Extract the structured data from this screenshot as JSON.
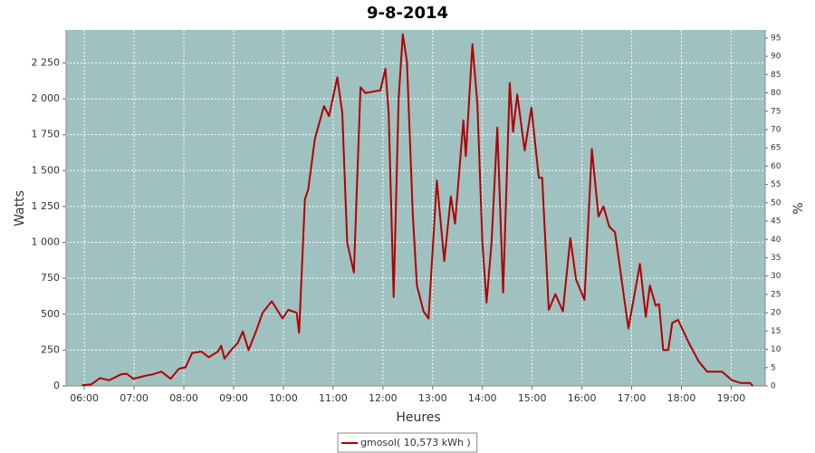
{
  "chart_data": {
    "type": "line",
    "title": "9-8-2014",
    "x_label": "Heures",
    "y_label": "Watts",
    "y2_label": "%",
    "x": [
      "05:57",
      "06:08",
      "06:19",
      "06:30",
      "06:44",
      "06:51",
      "06:59",
      "07:13",
      "07:22",
      "07:33",
      "07:44",
      "07:54",
      "08:02",
      "08:10",
      "08:21",
      "08:30",
      "08:41",
      "08:45",
      "08:49",
      "08:57",
      "09:05",
      "09:11",
      "09:18",
      "09:27",
      "09:35",
      "09:46",
      "09:59",
      "10:06",
      "10:16",
      "10:19",
      "10:26",
      "10:30",
      "10:38",
      "10:49",
      "10:55",
      "11:05",
      "11:11",
      "11:17",
      "11:25",
      "11:33",
      "11:39",
      "11:57",
      "12:03",
      "12:07",
      "12:13",
      "12:19",
      "12:24",
      "12:29",
      "12:36",
      "12:41",
      "12:49",
      "12:55",
      "13:05",
      "13:14",
      "13:22",
      "13:27",
      "13:37",
      "13:40",
      "13:48",
      "13:54",
      "14:00",
      "14:05",
      "14:11",
      "14:18",
      "14:25",
      "14:33",
      "14:37",
      "14:42",
      "14:51",
      "14:59",
      "15:08",
      "15:12",
      "15:20",
      "15:28",
      "15:37",
      "15:46",
      "15:53",
      "16:03",
      "16:12",
      "16:20",
      "16:26",
      "16:33",
      "16:40",
      "16:56",
      "17:10",
      "17:17",
      "17:22",
      "17:29",
      "17:33",
      "17:38",
      "17:44",
      "17:49",
      "17:56",
      "18:09",
      "18:21",
      "18:31",
      "18:49",
      "19:01",
      "19:12",
      "19:23",
      "19:26"
    ],
    "series": [
      {
        "name": "gmosol( 10,573 kWh )",
        "color": "#b00000",
        "values": [
          5,
          10,
          55,
          40,
          80,
          85,
          50,
          70,
          80,
          100,
          50,
          120,
          130,
          230,
          240,
          200,
          240,
          280,
          190,
          250,
          300,
          380,
          250,
          380,
          510,
          590,
          470,
          530,
          510,
          370,
          1300,
          1370,
          1720,
          1950,
          1880,
          2150,
          1900,
          1000,
          790,
          2080,
          2040,
          2060,
          2210,
          1900,
          620,
          2000,
          2450,
          2260,
          1200,
          700,
          520,
          470,
          1430,
          870,
          1320,
          1130,
          1850,
          1600,
          2380,
          1960,
          1000,
          580,
          1000,
          1800,
          650,
          2110,
          1770,
          2030,
          1640,
          1940,
          1450,
          1450,
          530,
          640,
          520,
          1030,
          740,
          600,
          1650,
          1180,
          1250,
          1110,
          1070,
          400,
          850,
          480,
          700,
          560,
          570,
          250,
          250,
          440,
          460,
          300,
          170,
          100,
          100,
          40,
          20,
          20,
          0
        ]
      }
    ],
    "xlim": [
      "05:38",
      "19:41"
    ],
    "xticks": [
      "06:00",
      "07:00",
      "08:00",
      "09:00",
      "10:00",
      "11:00",
      "12:00",
      "13:00",
      "14:00",
      "15:00",
      "16:00",
      "17:00",
      "18:00",
      "19:00"
    ],
    "ylim": [
      0,
      2480
    ],
    "yticks": [
      0,
      250,
      500,
      750,
      {
        "value": 1000,
        "label": "1 000"
      },
      {
        "value": 1250,
        "label": "1 250"
      },
      {
        "value": 1500,
        "label": "1 500"
      },
      {
        "value": 1750,
        "label": "1 750"
      },
      {
        "value": 2000,
        "label": "2 000"
      },
      {
        "value": 2250,
        "label": "2 250"
      }
    ],
    "y2lim": [
      0,
      97.2
    ],
    "y2ticks": [
      0,
      5,
      10,
      15,
      20,
      25,
      30,
      35,
      40,
      45,
      50,
      55,
      60,
      65,
      70,
      75,
      80,
      85,
      90,
      95
    ],
    "grid": true,
    "plot_background": "#9fc1c0",
    "legend": "bottom"
  }
}
